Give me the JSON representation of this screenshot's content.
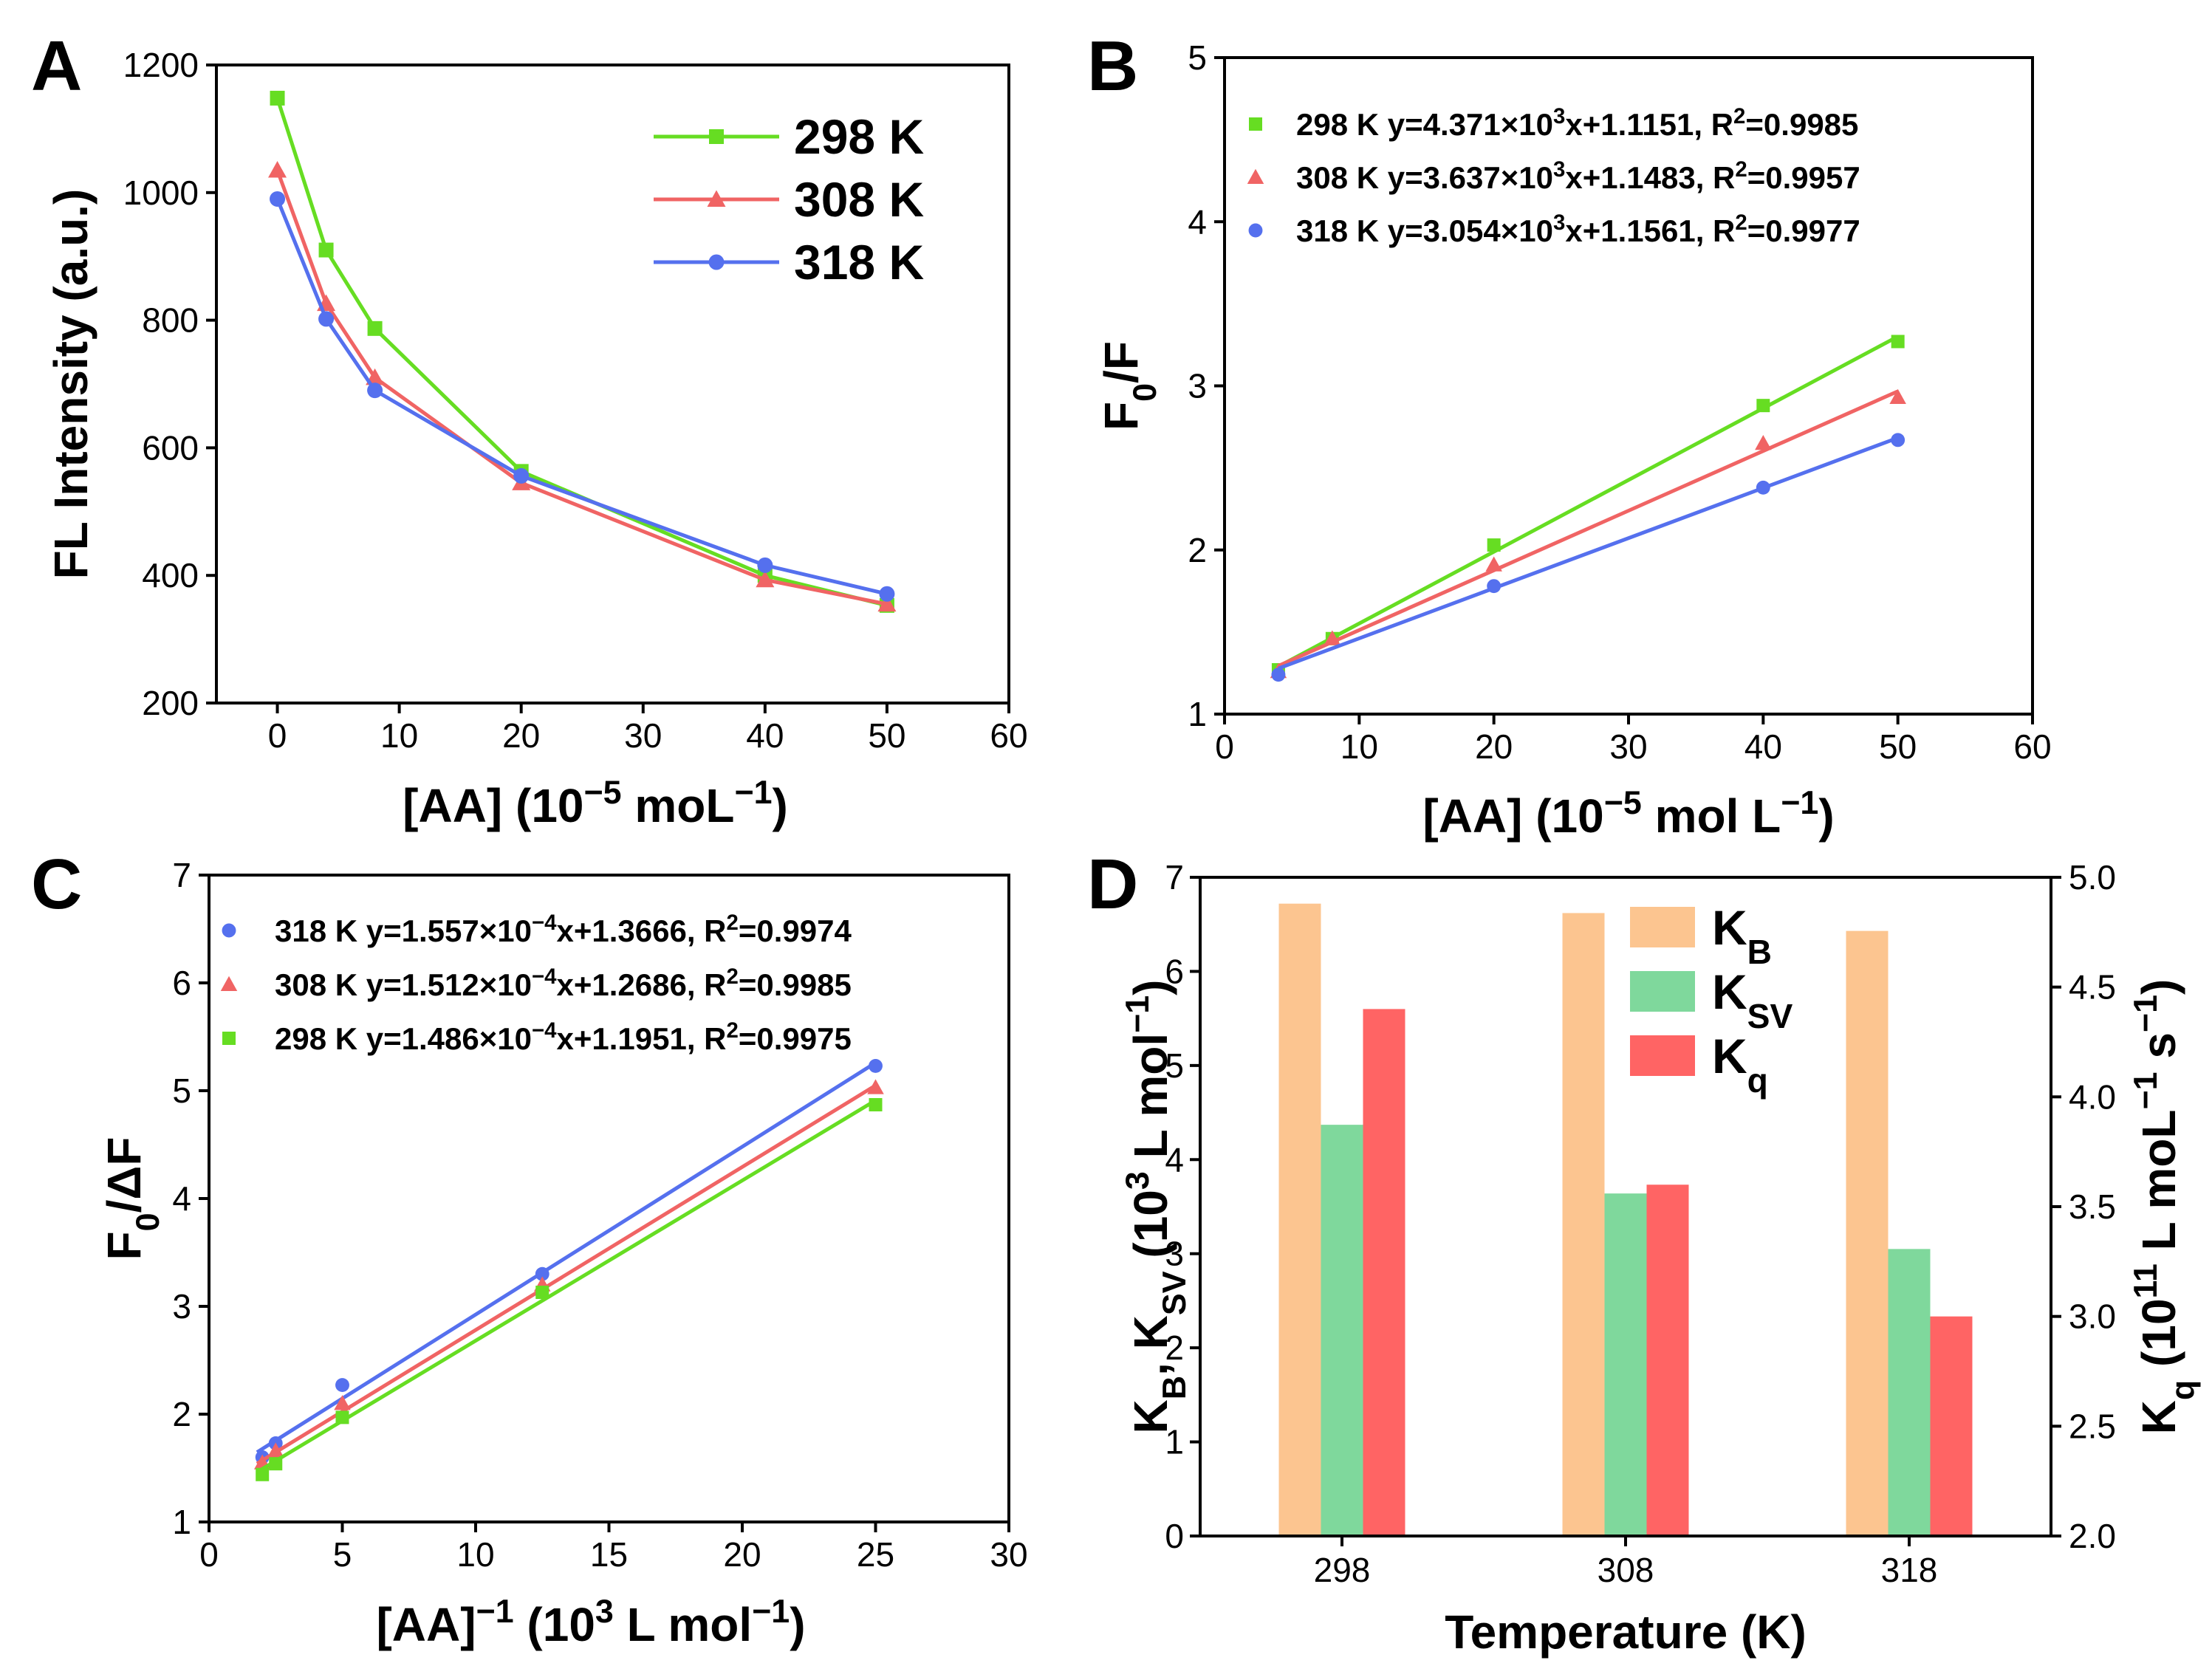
{
  "panel_letters": [
    "A",
    "B",
    "C",
    "D"
  ],
  "colors": {
    "298": "#66dd22",
    "308": "#f06464",
    "318": "#5570ee",
    "kb": "#fcc590",
    "ksv": "#7fd89c",
    "kq": "#ff6464"
  },
  "chart_data": [
    {
      "panel": "A",
      "type": "line",
      "xlabel_parts": [
        "[AA] (10",
        "−5",
        " moL",
        "−1",
        ")"
      ],
      "ylabel": "FL Intensity (a.u.)",
      "xlim": [
        -5,
        60
      ],
      "ylim": [
        200,
        1200
      ],
      "xticks": [
        0,
        10,
        20,
        30,
        40,
        50,
        60
      ],
      "yticks": [
        200,
        400,
        600,
        800,
        1000,
        1200
      ],
      "legend": [
        "298 K",
        "308 K",
        "318 K"
      ],
      "series": [
        {
          "name": "298 K",
          "marker": "square",
          "x": [
            0,
            4,
            8,
            20,
            40,
            50
          ],
          "y": [
            1148,
            910,
            787,
            563,
            400,
            353
          ]
        },
        {
          "name": "308 K",
          "marker": "triangle",
          "x": [
            0,
            4,
            8,
            20,
            40,
            50
          ],
          "y": [
            1035,
            826,
            710,
            545,
            393,
            355
          ]
        },
        {
          "name": "318 K",
          "marker": "circle",
          "x": [
            0,
            4,
            8,
            20,
            40,
            50
          ],
          "y": [
            990,
            802,
            690,
            556,
            416,
            371
          ]
        }
      ]
    },
    {
      "panel": "B",
      "type": "scatter",
      "xlabel_parts": [
        "[AA] (10",
        "−5",
        " mol L",
        "−1",
        ")"
      ],
      "ylabel_parts": [
        "F",
        "0",
        "/F"
      ],
      "xlim": [
        0,
        60
      ],
      "ylim": [
        1,
        5
      ],
      "xticks": [
        0,
        10,
        20,
        30,
        40,
        50,
        60
      ],
      "yticks": [
        1,
        2,
        3,
        4,
        5
      ],
      "legend": [
        [
          "298 K  y=4.371×10",
          "3",
          "x+1.1151, R",
          "2",
          "=0.9985"
        ],
        [
          "308 K  y=3.637×10",
          "3",
          "x+1.1483, R",
          "2",
          "=0.9957"
        ],
        [
          "318 K  y=3.054×10",
          "3",
          "x+1.1561, R",
          "2",
          "=0.9977"
        ]
      ],
      "series": [
        {
          "name": "298 K",
          "marker": "square",
          "x": [
            4,
            8,
            20,
            40,
            50
          ],
          "y": [
            1.27,
            1.46,
            2.03,
            2.88,
            3.27
          ],
          "fit": {
            "slope": 0.04371,
            "intercept": 1.1151
          }
        },
        {
          "name": "308 K",
          "marker": "triangle",
          "x": [
            4,
            8,
            20,
            40,
            50
          ],
          "y": [
            1.26,
            1.46,
            1.91,
            2.65,
            2.93
          ],
          "fit": {
            "slope": 0.03637,
            "intercept": 1.1483
          }
        },
        {
          "name": "318 K",
          "marker": "circle",
          "x": [
            4,
            20,
            40,
            50
          ],
          "y": [
            1.24,
            1.78,
            2.38,
            2.67
          ],
          "fit": {
            "slope": 0.03054,
            "intercept": 1.1561
          }
        }
      ]
    },
    {
      "panel": "C",
      "type": "scatter",
      "xlabel_parts": [
        "[AA]",
        "−1",
        " (10",
        "3",
        " L mol",
        "−1",
        ")"
      ],
      "ylabel_parts": [
        "F",
        "0",
        "/ΔF"
      ],
      "xlim": [
        0,
        30
      ],
      "ylim": [
        1,
        7
      ],
      "xticks": [
        0,
        5,
        10,
        15,
        20,
        25,
        30
      ],
      "yticks": [
        1,
        2,
        3,
        4,
        5,
        6,
        7
      ],
      "legend": [
        [
          "318 K  y=1.557×10",
          "−4",
          "x+1.3666, R",
          "2",
          "=0.9974"
        ],
        [
          "308 K  y=1.512×10",
          "−4",
          "x+1.2686, R",
          "2",
          "=0.9985"
        ],
        [
          "298 K  y=1.486×10",
          "−4",
          "x+1.1951, R",
          "2",
          "=0.9975"
        ]
      ],
      "series": [
        {
          "name": "318 K",
          "marker": "circle",
          "x": [
            2,
            2.5,
            5,
            12.5,
            25
          ],
          "y": [
            1.6,
            1.73,
            2.27,
            3.3,
            5.23
          ],
          "fit": {
            "slope": 0.1557,
            "intercept": 1.3666
          }
        },
        {
          "name": "308 K",
          "marker": "triangle",
          "x": [
            2,
            2.5,
            5,
            12.5,
            25
          ],
          "y": [
            1.55,
            1.66,
            2.1,
            3.2,
            5.03
          ],
          "fit": {
            "slope": 0.1512,
            "intercept": 1.2686
          }
        },
        {
          "name": "298 K",
          "marker": "square",
          "x": [
            2,
            2.5,
            5,
            12.5,
            25
          ],
          "y": [
            1.44,
            1.54,
            1.97,
            3.13,
            4.87
          ],
          "fit": {
            "slope": 0.1486,
            "intercept": 1.1951
          }
        }
      ]
    },
    {
      "panel": "D",
      "type": "bar",
      "xlabel": "Temperature (K)",
      "ylabel_parts": [
        "K",
        "B",
        ", K",
        "SV",
        "  (10",
        "3",
        " L mol",
        "−1",
        ")"
      ],
      "y2label_parts": [
        "K",
        "q",
        " (10",
        "11",
        " L moL",
        "−1",
        " s",
        "−1",
        ")"
      ],
      "categories": [
        "298",
        "308",
        "318"
      ],
      "ylim": [
        0,
        7
      ],
      "yticks": [
        0,
        1,
        2,
        3,
        4,
        5,
        6,
        7
      ],
      "y2lim": [
        2.0,
        5.0
      ],
      "y2ticks": [
        "2.0",
        "2.5",
        "3.0",
        "3.5",
        "4.0",
        "4.5",
        "5.0"
      ],
      "legend": [
        [
          "K",
          "B"
        ],
        [
          "K",
          "SV"
        ],
        [
          "K",
          "q"
        ]
      ],
      "series": [
        {
          "name": "KB",
          "axis": "left",
          "values": [
            6.72,
            6.62,
            6.43
          ]
        },
        {
          "name": "KSV",
          "axis": "left",
          "values": [
            4.37,
            3.64,
            3.05
          ]
        },
        {
          "name": "Kq",
          "axis": "right",
          "values": [
            4.4,
            3.6,
            3.0
          ]
        }
      ]
    }
  ]
}
